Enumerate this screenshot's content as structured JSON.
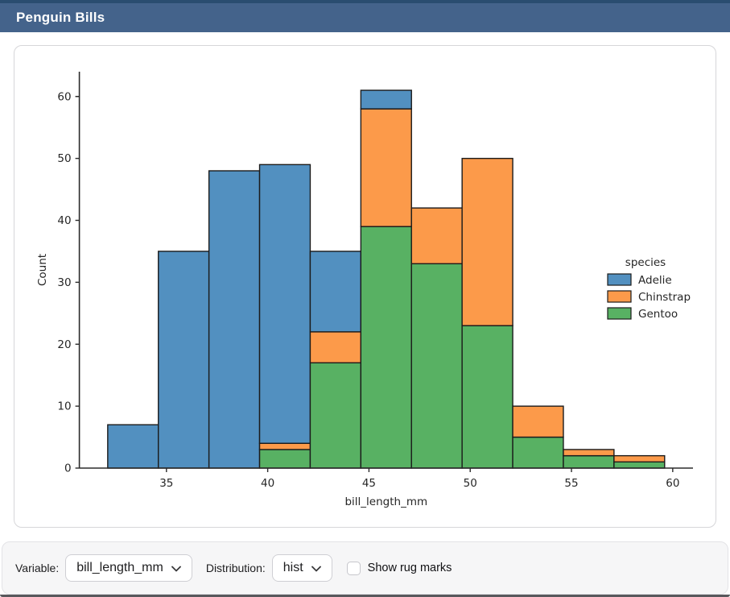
{
  "window": {
    "title": "Penguin Bills"
  },
  "toolbar": {
    "variable_label": "Variable:",
    "variable_value": "bill_length_mm",
    "distribution_label": "Distribution:",
    "distribution_value": "hist",
    "rug_label": "Show rug marks",
    "rug_checked": false
  },
  "colors": {
    "titlebar_bg": "#44638b",
    "titlebar_top": "#2a4d70",
    "card_border": "#d6d6d9",
    "toolbar_bg": "#f6f6f7",
    "toolbar_border": "#e3e3e6",
    "window_edge": "#58585c",
    "adelie": "#5290c0",
    "chinstrap": "#fc9a4a",
    "gentoo": "#58b163",
    "bar_edge": "#1b1b1b",
    "axis": "#2b2b2b",
    "tick_text": "#262626"
  },
  "chart_data": {
    "type": "bar",
    "subtype": "stacked-histogram",
    "xlabel": "bill_length_mm",
    "ylabel": "Count",
    "legend_title": "species",
    "legend_position": "right",
    "bin_start": 32.1,
    "bin_width": 2.5,
    "bin_edges": [
      32.1,
      34.6,
      37.1,
      39.6,
      42.1,
      44.6,
      47.1,
      49.6,
      52.1,
      54.6,
      57.1,
      59.6
    ],
    "xticks": [
      35,
      40,
      45,
      50,
      55,
      60
    ],
    "yticks": [
      0,
      10,
      20,
      30,
      40,
      50,
      60
    ],
    "xlim": [
      30.7,
      61.0
    ],
    "ylim": [
      0,
      64
    ],
    "grid": false,
    "series": [
      {
        "name": "Adelie",
        "color": "#5290c0",
        "values": [
          7,
          35,
          48,
          45,
          13,
          3,
          0,
          0,
          0,
          0,
          0
        ]
      },
      {
        "name": "Chinstrap",
        "color": "#fc9a4a",
        "values": [
          0,
          0,
          0,
          1,
          5,
          19,
          9,
          27,
          5,
          1,
          1
        ]
      },
      {
        "name": "Gentoo",
        "color": "#58b163",
        "values": [
          0,
          0,
          0,
          3,
          17,
          39,
          33,
          23,
          5,
          2,
          1
        ]
      }
    ],
    "stack_order_bottom_to_top": [
      "Gentoo",
      "Chinstrap",
      "Adelie"
    ],
    "bar_totals": [
      7,
      35,
      48,
      49,
      35,
      61,
      42,
      50,
      10,
      3,
      2
    ]
  }
}
